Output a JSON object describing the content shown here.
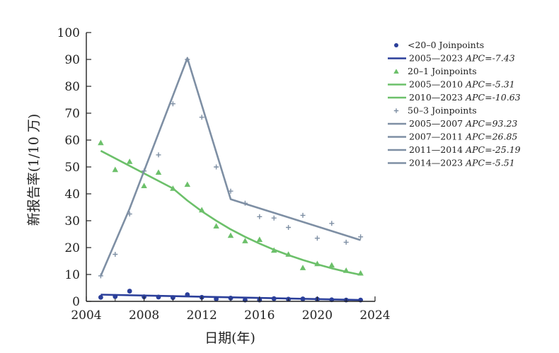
{
  "chart_data": {
    "type": "scatter",
    "xlabel": "日期(年)",
    "ylabel": "新报告率(1/10 万)",
    "xlim": [
      2004,
      2024
    ],
    "ylim": [
      0,
      100
    ],
    "xticks": [
      "2004",
      "2008",
      "2012",
      "2016",
      "2020",
      "2024"
    ],
    "yticks": [
      "0",
      "10",
      "20",
      "30",
      "40",
      "50",
      "60",
      "70",
      "80",
      "90",
      "100"
    ],
    "colors": {
      "blue": "#2b3f9a",
      "green": "#6cc06a",
      "gray": "#7e8fa4"
    },
    "groups": [
      {
        "name": "<20-0",
        "marker": "circle",
        "color": "#2b3f9a",
        "legend_points": "<20–0 Joinpoints",
        "points": [
          [
            2005,
            1.5
          ],
          [
            2006,
            1.8
          ],
          [
            2007,
            3.8
          ],
          [
            2008,
            1.7
          ],
          [
            2009,
            1.6
          ],
          [
            2010,
            1.4
          ],
          [
            2011,
            2.5
          ],
          [
            2012,
            1.5
          ],
          [
            2013,
            0.9
          ],
          [
            2014,
            1.2
          ],
          [
            2015,
            0.5
          ],
          [
            2016,
            0.5
          ],
          [
            2017,
            1.0
          ],
          [
            2018,
            0.8
          ],
          [
            2019,
            0.9
          ],
          [
            2020,
            0.8
          ],
          [
            2021,
            0.6
          ],
          [
            2022,
            0.5
          ],
          [
            2023,
            0.5
          ]
        ],
        "fit": [
          [
            2005,
            2.5
          ],
          [
            2023,
            0.5
          ]
        ],
        "segments": [
          {
            "period": "2005—2023",
            "apc": "APC=-7.43"
          }
        ]
      },
      {
        "name": "20-1",
        "marker": "triangle",
        "color": "#6cc06a",
        "legend_points": "20–1 Joinpoints",
        "points": [
          [
            2005,
            59
          ],
          [
            2006,
            49
          ],
          [
            2007,
            52
          ],
          [
            2008,
            43
          ],
          [
            2009,
            48
          ],
          [
            2010,
            42
          ],
          [
            2011,
            43.5
          ],
          [
            2012,
            34
          ],
          [
            2013,
            28
          ],
          [
            2014,
            24.5
          ],
          [
            2015,
            22.5
          ],
          [
            2016,
            23
          ],
          [
            2017,
            19
          ],
          [
            2018,
            17.5
          ],
          [
            2019,
            12.5
          ],
          [
            2020,
            14
          ],
          [
            2021,
            13.5
          ],
          [
            2022,
            11.5
          ],
          [
            2023,
            10.5
          ]
        ],
        "fit": [
          [
            2005,
            56
          ],
          [
            2010,
            42
          ],
          [
            2011,
            37.5
          ],
          [
            2012,
            33.5
          ],
          [
            2013,
            30
          ],
          [
            2014,
            26.8
          ],
          [
            2015,
            24
          ],
          [
            2016,
            21.5
          ],
          [
            2017,
            19.2
          ],
          [
            2018,
            17.2
          ],
          [
            2019,
            15.4
          ],
          [
            2020,
            13.8
          ],
          [
            2021,
            12.3
          ],
          [
            2022,
            11
          ],
          [
            2023,
            9.9
          ]
        ],
        "segments": [
          {
            "period": "2005—2010",
            "apc": "APC=-5.31"
          },
          {
            "period": "2010—2023",
            "apc": "APC=-10.63"
          }
        ]
      },
      {
        "name": "50-3",
        "marker": "plus",
        "color": "#7e8fa4",
        "legend_points": "50–3 Joinpoints",
        "points": [
          [
            2005,
            9.5
          ],
          [
            2006,
            17.5
          ],
          [
            2007,
            32.5
          ],
          [
            2008,
            48.5
          ],
          [
            2009,
            54.5
          ],
          [
            2010,
            73.5
          ],
          [
            2011,
            90
          ],
          [
            2012,
            68.5
          ],
          [
            2013,
            50
          ],
          [
            2014,
            41
          ],
          [
            2015,
            36.5
          ],
          [
            2016,
            31.5
          ],
          [
            2017,
            31
          ],
          [
            2018,
            27.5
          ],
          [
            2019,
            32
          ],
          [
            2020,
            23.5
          ],
          [
            2021,
            29
          ],
          [
            2022,
            22
          ],
          [
            2023,
            24
          ]
        ],
        "fit": [
          [
            2005,
            9.5
          ],
          [
            2007,
            34.5
          ],
          [
            2011,
            90.5
          ],
          [
            2014,
            38
          ],
          [
            2023,
            22.8
          ]
        ],
        "segments": [
          {
            "period": "2005—2007",
            "apc": "APC=93.23"
          },
          {
            "period": "2007—2011",
            "apc": "APC=26.85"
          },
          {
            "period": "2011—2014",
            "apc": "APC=-25.19"
          },
          {
            "period": "2014—2023",
            "apc": "APC=-5.51"
          }
        ]
      }
    ]
  }
}
